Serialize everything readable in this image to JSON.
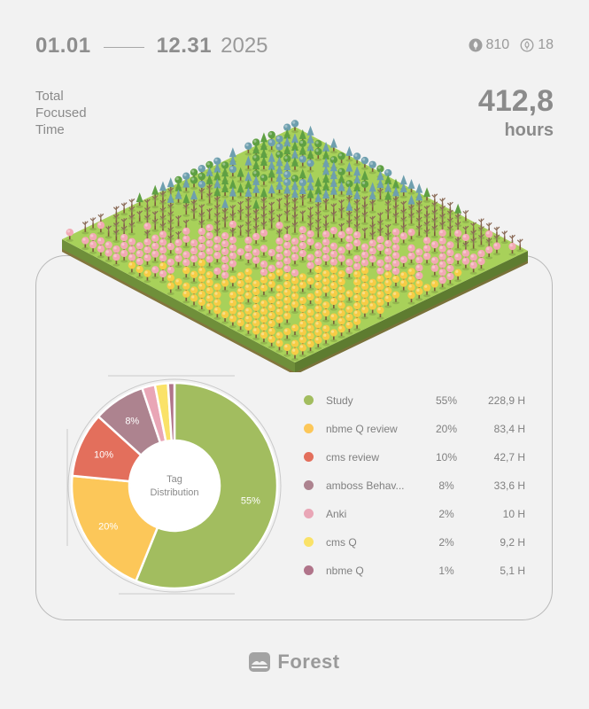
{
  "header": {
    "start_date": "01.01",
    "end_date": "12.31",
    "year": "2025",
    "stats": [
      {
        "icon": "tree-filled-icon",
        "value": "810"
      },
      {
        "icon": "tree-outline-icon",
        "value": "18"
      }
    ]
  },
  "total": {
    "label": "Total Focused Time",
    "value": "412,8",
    "unit": "hours"
  },
  "forest": {
    "icon": "isometric-forest-island",
    "colors": {
      "grass_top": "#a8d15a",
      "grass_side_left": "#6f8f3a",
      "grass_side_right": "#5e7c30",
      "soil": "#8c6a3f",
      "yellow_tree": "#f7cc45",
      "pink_tree": "#f2a9b4",
      "bare_tree": "#8a6b57",
      "green_tree": "#5fa043",
      "blue_tree": "#6e9fae"
    }
  },
  "chart_data": {
    "type": "pie",
    "center_label": "Tag Distribution",
    "categories": [
      "Study",
      "nbme Q review",
      "cms review",
      "amboss Behav...",
      "Anki",
      "cms Q",
      "nbme Q"
    ],
    "values": [
      55,
      20,
      10,
      8,
      2,
      2,
      1
    ],
    "unit": "%",
    "hours": [
      "228,9 H",
      "83,4 H",
      "42,7 H",
      "33,6 H",
      "10 H",
      "9,2 H",
      "5,1 H"
    ],
    "colors": [
      "#a2bd5f",
      "#fcc759",
      "#e36f5c",
      "#ad838f",
      "#e9a6b6",
      "#fae268",
      "#b0748a"
    ],
    "slice_labels_shown": [
      "55%",
      "20%",
      "10%",
      "8%"
    ]
  },
  "legend": {
    "items": [
      {
        "name": "Study",
        "pct": "55%",
        "hours": "228,9 H"
      },
      {
        "name": "nbme Q review",
        "pct": "20%",
        "hours": "83,4 H"
      },
      {
        "name": "cms review",
        "pct": "10%",
        "hours": "42,7 H"
      },
      {
        "name": "amboss Behav...",
        "pct": "8%",
        "hours": "33,6 H"
      },
      {
        "name": "Anki",
        "pct": "2%",
        "hours": "10 H"
      },
      {
        "name": "cms Q",
        "pct": "2%",
        "hours": "9,2 H"
      },
      {
        "name": "nbme Q",
        "pct": "1%",
        "hours": "5,1 H"
      }
    ]
  },
  "brand": {
    "name": "Forest",
    "icon": "forest-logo-icon"
  }
}
